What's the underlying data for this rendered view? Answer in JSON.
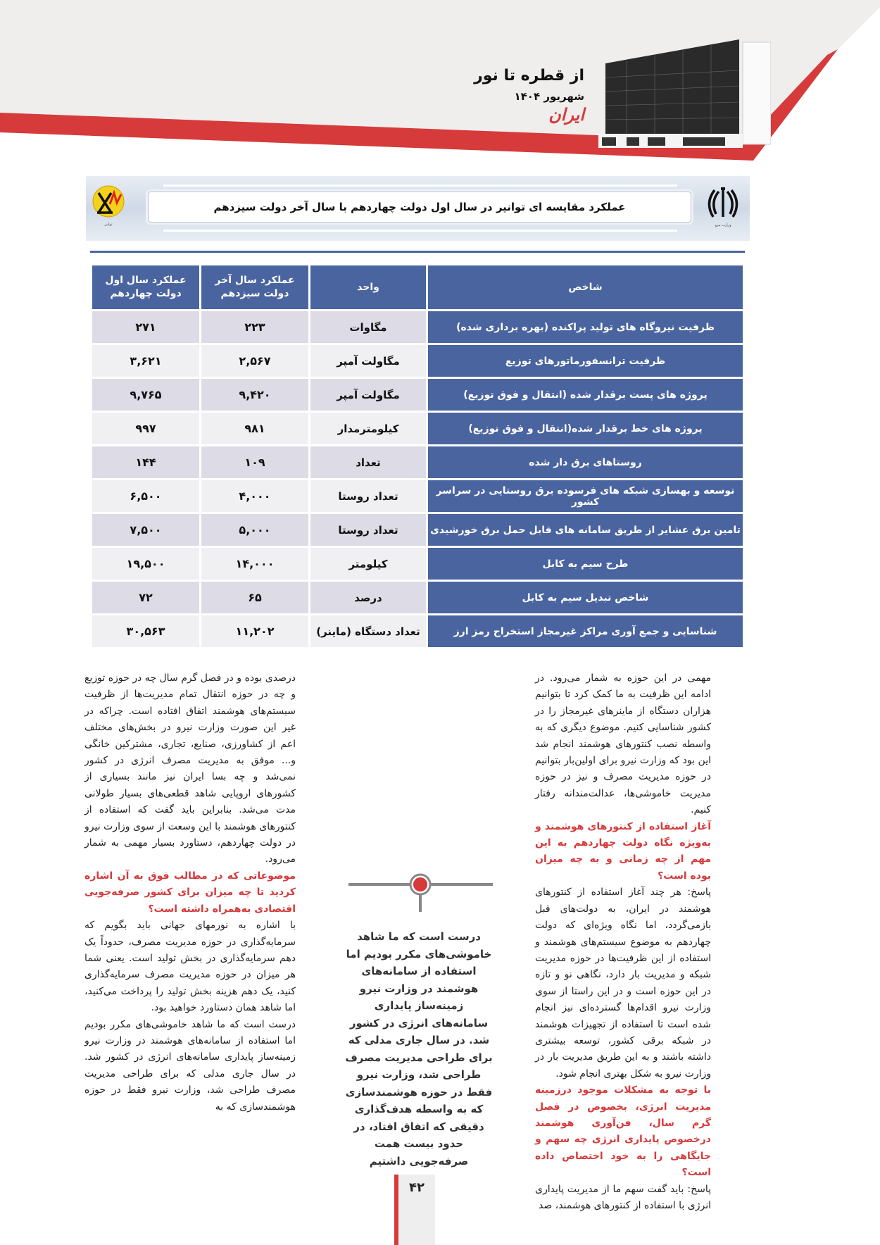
{
  "header": {
    "magazine_title": "از قطره تا نور",
    "issue_date": "شهریور ۱۴۰۴",
    "newspaper_logo": "ایران",
    "accent_color": "#d63a3a",
    "image": "ministry-building-photo"
  },
  "banner": {
    "title": "عملکرد مقایسه ای توانیر در سال اول دولت چهاردهم با سال آخر دولت سیزدهم",
    "left_logo": "tavanir-logo",
    "right_logo": "iran-emblem"
  },
  "table": {
    "header_color": "#4a64a0",
    "columns": [
      "شاخص",
      "واحد",
      "عملکرد سال آخر دولت سیزدهم",
      "عملکرد سال اول دولت چهاردهم"
    ],
    "rows": [
      {
        "indicator": "ظرفیت نیروگاه های تولید پراکنده (بهره برداری شده)",
        "unit": "مگاوات",
        "gov13": "۲۲۳",
        "gov14": "۲۷۱"
      },
      {
        "indicator": "ظرفیت ترانسفورماتورهای توزیع",
        "unit": "مگاولت آمپر",
        "gov13": "۲,۵۶۷",
        "gov14": "۳,۶۲۱"
      },
      {
        "indicator": "پروژه های پست برقدار شده (انتقال و فوق توزیع)",
        "unit": "مگاولت آمپر",
        "gov13": "۹,۴۲۰",
        "gov14": "۹,۷۶۵"
      },
      {
        "indicator": "پروژه های خط برقدار شده(انتقال و فوق توزیع)",
        "unit": "کیلومترمدار",
        "gov13": "۹۸۱",
        "gov14": "۹۹۷"
      },
      {
        "indicator": "روستاهای برق دار شده",
        "unit": "تعداد",
        "gov13": "۱۰۹",
        "gov14": "۱۴۴"
      },
      {
        "indicator": "توسعه و بهسازی شبکه های فرسوده برق روستایی در سراسر کشور",
        "unit": "تعداد روستا",
        "gov13": "۴,۰۰۰",
        "gov14": "۶,۵۰۰"
      },
      {
        "indicator": "تامین برق عشایر از طریق سامانه های قابل حمل برق خورشیدی",
        "unit": "تعداد روستا",
        "gov13": "۵,۰۰۰",
        "gov14": "۷,۵۰۰"
      },
      {
        "indicator": "طرح سیم به کابل",
        "unit": "کیلومتر",
        "gov13": "۱۴,۰۰۰",
        "gov14": "۱۹,۵۰۰"
      },
      {
        "indicator": "شاخص تبدیل سیم به کابل",
        "unit": "درصد",
        "gov13": "۶۵",
        "gov14": "۷۲"
      },
      {
        "indicator": "شناسایی و جمع آوری مراکز غیرمجاز استخراج رمز ارز",
        "unit": "تعداد دستگاه (ماینر)",
        "gov13": "۱۱,۲۰۲",
        "gov14": "۳۰,۵۶۳"
      }
    ]
  },
  "right_column": [
    {
      "type": "text",
      "text": "مهمی در این حوزه به شمار می‌رود. در ادامه این ظرفیت به ما کمک کرد تا بتوانیم هزاران دستگاه از ماینرهای غیرمجاز را در کشور شناسایی کنیم. موضوع دیگری که به واسطه نصب کنتورهای هوشمند انجام شد این بود که وزارت نیرو برای اولین‌بار بتوانیم در حوزه مدیریت مصرف و نیز در حوزه مدیریت خاموشی‌ها، عدالت‌مندانه رفتار کنیم."
    },
    {
      "type": "question",
      "text": "آغاز استفاده از کنتورهای هوشمند و به‌ویژه نگاه دولت چهاردهم به این مهم از چه زمانی و به چه میزان بوده است؟"
    },
    {
      "type": "text",
      "text": "پاسخ: هر چند آغاز استفاده از کنتورهای هوشمند در ایران، به دولت‌های قبل بازمی‌گردد، اما نگاه ویژه‌ای که دولت چهاردهم به موضوع سیستم‌های هوشمند و استفاده از این ظرفیت‌ها در حوزه مدیریت شبکه و مدیریت بار دارد، نگاهی نو و تازه در این حوزه است و در این راستا از سوی وزارت نیرو اقدام‌ها گسترده‌ای نیز انجام شده است تا استفاده از تجهیزات هوشمند در شبکه برقی کشور، توسعه بیشتری داشته باشند و به این طریق مدیریت بار در وزارت نیرو به شکل بهتری انجام شود."
    },
    {
      "type": "question",
      "text": "با توجه به مشکلات موجود درزمینه مدیریت انرژی، بخصوص در فصل گرم سال، فن‌آوری هوشمند درخصوص پایداری انرژی چه سهم و جایگاهی را به خود اختصاص داده است؟"
    },
    {
      "type": "text",
      "text": "پاسخ: باید گفت سهم ما از مدیریت پایداری انرژی با استفاده از کنتورهای هوشمند، صد"
    }
  ],
  "left_column": [
    {
      "type": "text",
      "text": "درصدی بوده و در فصل گرم سال چه در حوزه توزیع و چه در حوزه انتقال تمام مدیریت‌ها از ظرفیت سیستم‌های هوشمند اتفاق افتاده است. چراکه در غیر این صورت وزارت نیرو در بخش‌های مختلف اعم از کشاورزی، صنایع، تجاری، مشترکین خانگی و... موفق به مدیریت مصرف انرژی در کشور نمی‌شد و چه بسا ایران نیز مانند بسیاری از کشورهای اروپایی شاهد قطعی‌های بسیار طولانی مدت می‌شد. بنابراین باید گفت که استفاده از کنتورهای هوشمند با این وسعت از سوی وزارت نیرو در دولت چهاردهم، دستاورد بسیار مهمی به شمار می‌رود."
    },
    {
      "type": "question",
      "text": "موضوعاتی که در مطالب فوق به آن اشاره کردید تا چه میزان برای کشور صرفه‌جویی اقتصادی به‌همراه داشته است؟"
    },
    {
      "type": "text",
      "text": "با اشاره به نورمهای جهانی باید بگویم که سرمایه‌گذاری در حوزه مدیریت مصرف، حدوداً یک دهم سرمایه‌گذاری در بخش تولید است. یعنی شما هر میزان در حوزه مدیریت مصرف سرمایه‌گذاری کنید، یک دهم هزینه بخش تولید را پرداخت می‌کنید، اما شاهد همان دستاورد خواهید بود."
    },
    {
      "type": "text",
      "text": "درست است که ما شاهد خاموشی‌های مکرر بودیم اما استفاده از سامانه‌های هوشمند در وزارت نیرو زمینه‌ساز پایداری سامانه‌های انرژی در کشور شد. در سال جاری مدلی که برای طراحی مدیریت مصرف طراحی شد، وزارت نیرو فقط در حوزه هوشمندسازی که به"
    }
  ],
  "pull_quote": "درست است که ما شاهد خاموشی‌های مکرر بودیم اما استفاده از سامانه‌های هوشمند در وزارت نیرو زمینه‌ساز پایداری سامانه‌های انرژی در کشور شد. در سال جاری مدلی که برای طراحی مدیریت مصرف طراحی شد، وزارت نیرو فقط در حوزه هوشمندسازی که به واسطه هدف‌گذاری دقیقی که اتفاق افتاد، در حدود بیست همت صرفه‌جویی داشتیم",
  "page_number": "۴۲"
}
